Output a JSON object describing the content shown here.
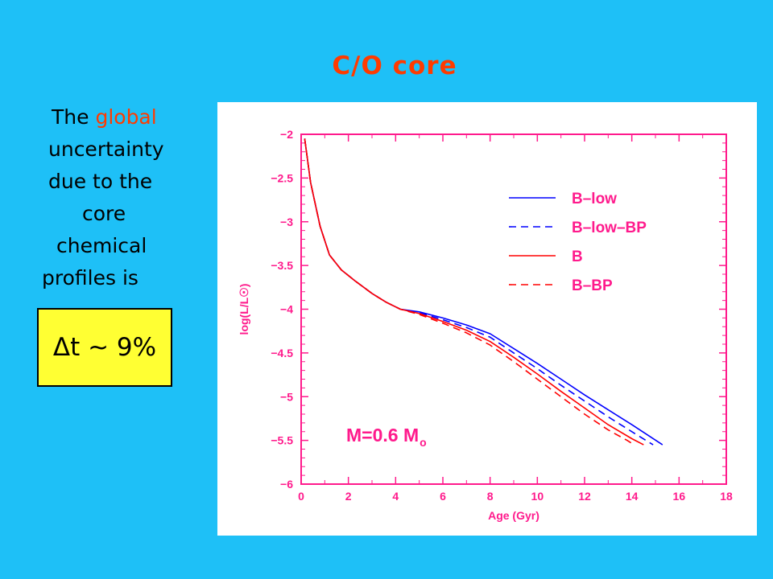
{
  "slide": {
    "title": "C/O core",
    "text_lines": [
      [
        {
          "t": "The ",
          "hl": false
        },
        {
          "t": "global",
          "hl": true
        }
      ],
      [
        {
          "t": "uncertainty",
          "hl": false
        }
      ],
      [
        {
          "t": "due to the",
          "hl": false
        }
      ],
      [
        {
          "t": "core",
          "hl": false
        }
      ],
      [
        {
          "t": "chemical",
          "hl": false
        }
      ],
      [
        {
          "t": "profiles is",
          "hl": false
        }
      ]
    ],
    "result": "Δt ~ 9%"
  },
  "colors": {
    "background": "#1ec0f7",
    "title": "#ff3b00",
    "highlight": "#ff3b00",
    "box": "#ffff33",
    "chart_text": "#ff1a8c",
    "blue_series": "#0000ff",
    "red_series": "#ff0000"
  },
  "chart_data": {
    "type": "line",
    "title": "",
    "xlabel": "Age (Gyr)",
    "ylabel": "log(L/L☉)",
    "xlim": [
      0,
      18
    ],
    "ylim": [
      -6,
      -2
    ],
    "xticks": [
      0,
      2,
      4,
      6,
      8,
      10,
      12,
      14,
      16,
      18
    ],
    "yticks": [
      -2,
      -2.5,
      -3,
      -3.5,
      -4,
      -4.5,
      -5,
      -5.5,
      -6
    ],
    "legend_position": "top-right",
    "annotation": {
      "text_main": "M=0.6 M",
      "text_sub": "o"
    },
    "series": [
      {
        "name": "B–low",
        "color": "#0000ff",
        "dash": "solid",
        "x": [
          0.15,
          0.4,
          0.8,
          1.2,
          1.7,
          2.3,
          3.0,
          3.6,
          4.2,
          5.0,
          6.0,
          7.0,
          8.0,
          9.0,
          10.0,
          11.0,
          12.0,
          13.0,
          14.0,
          15.3
        ],
        "y": [
          -2.05,
          -2.55,
          -3.05,
          -3.38,
          -3.55,
          -3.68,
          -3.82,
          -3.92,
          -4.0,
          -4.03,
          -4.1,
          -4.18,
          -4.28,
          -4.45,
          -4.62,
          -4.8,
          -4.98,
          -5.15,
          -5.32,
          -5.55
        ]
      },
      {
        "name": "B–low–BP",
        "color": "#0000ff",
        "dash": "dashed",
        "x": [
          0.15,
          0.4,
          0.8,
          1.2,
          1.7,
          2.3,
          3.0,
          3.6,
          4.2,
          5.0,
          6.0,
          7.0,
          8.0,
          9.0,
          10.0,
          11.0,
          12.0,
          13.0,
          14.0,
          14.9
        ],
        "y": [
          -2.05,
          -2.55,
          -3.05,
          -3.38,
          -3.55,
          -3.68,
          -3.82,
          -3.92,
          -4.0,
          -4.04,
          -4.12,
          -4.21,
          -4.32,
          -4.5,
          -4.68,
          -4.87,
          -5.05,
          -5.23,
          -5.4,
          -5.55
        ]
      },
      {
        "name": "B",
        "color": "#ff0000",
        "dash": "solid",
        "x": [
          0.15,
          0.4,
          0.8,
          1.2,
          1.7,
          2.3,
          3.0,
          3.6,
          4.2,
          5.0,
          6.0,
          7.0,
          8.0,
          9.0,
          10.0,
          11.0,
          12.0,
          13.0,
          14.0,
          14.5
        ],
        "y": [
          -2.05,
          -2.55,
          -3.05,
          -3.38,
          -3.55,
          -3.68,
          -3.82,
          -3.92,
          -4.0,
          -4.05,
          -4.14,
          -4.24,
          -4.37,
          -4.55,
          -4.74,
          -4.94,
          -5.13,
          -5.32,
          -5.48,
          -5.55
        ]
      },
      {
        "name": "B–BP",
        "color": "#ff0000",
        "dash": "dashed",
        "x": [
          0.15,
          0.4,
          0.8,
          1.2,
          1.7,
          2.3,
          3.0,
          3.6,
          4.2,
          5.0,
          6.0,
          7.0,
          8.0,
          9.0,
          10.0,
          11.0,
          12.0,
          13.0,
          13.8,
          14.1
        ],
        "y": [
          -2.05,
          -2.55,
          -3.05,
          -3.38,
          -3.55,
          -3.68,
          -3.82,
          -3.92,
          -4.0,
          -4.06,
          -4.16,
          -4.27,
          -4.41,
          -4.6,
          -4.8,
          -5.0,
          -5.2,
          -5.38,
          -5.5,
          -5.55
        ]
      }
    ]
  }
}
